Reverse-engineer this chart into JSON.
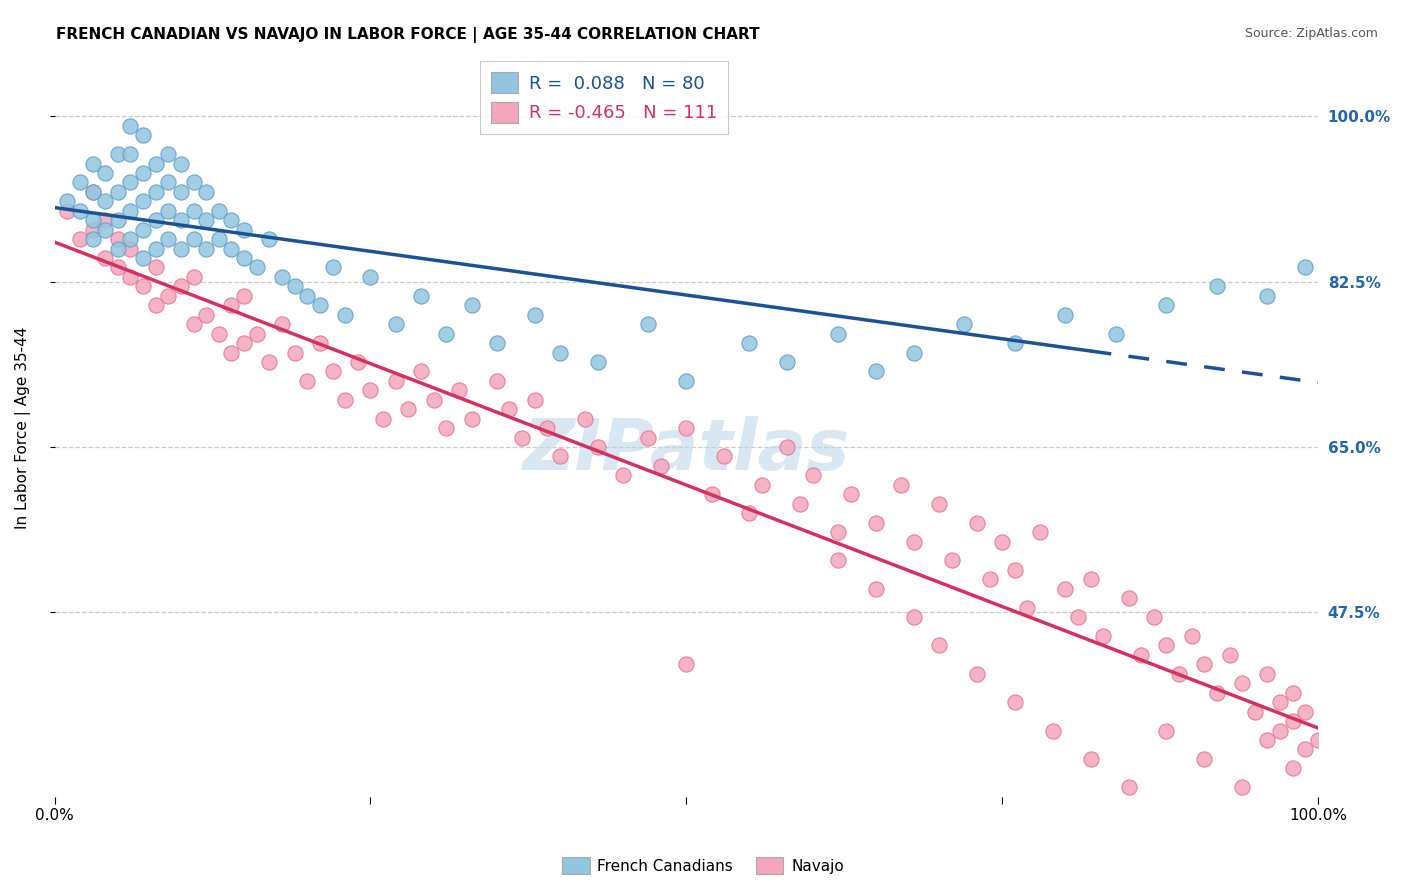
{
  "title": "FRENCH CANADIAN VS NAVAJO IN LABOR FORCE | AGE 35-44 CORRELATION CHART",
  "source": "Source: ZipAtlas.com",
  "ylabel": "In Labor Force | Age 35-44",
  "xlim": [
    0.0,
    1.0
  ],
  "ylim": [
    0.28,
    1.06
  ],
  "yticks": [
    0.475,
    0.65,
    0.825,
    1.0
  ],
  "ytick_labels": [
    "47.5%",
    "65.0%",
    "82.5%",
    "100.0%"
  ],
  "legend_blue_r": "0.088",
  "legend_blue_n": "80",
  "legend_pink_r": "-0.465",
  "legend_pink_n": "111",
  "blue_color": "#92c5de",
  "blue_edge_color": "#5a9fc8",
  "pink_color": "#f4a6bc",
  "pink_edge_color": "#e87097",
  "blue_line_color": "#1a5296",
  "pink_line_color": "#d63060",
  "watermark": "ZIPatlas",
  "background_color": "#ffffff",
  "grid_color": "#cccccc",
  "blue_scatter_x": [
    0.01,
    0.02,
    0.02,
    0.03,
    0.03,
    0.03,
    0.03,
    0.04,
    0.04,
    0.04,
    0.05,
    0.05,
    0.05,
    0.05,
    0.06,
    0.06,
    0.06,
    0.06,
    0.06,
    0.07,
    0.07,
    0.07,
    0.07,
    0.07,
    0.08,
    0.08,
    0.08,
    0.08,
    0.09,
    0.09,
    0.09,
    0.09,
    0.1,
    0.1,
    0.1,
    0.1,
    0.11,
    0.11,
    0.11,
    0.12,
    0.12,
    0.12,
    0.13,
    0.13,
    0.14,
    0.14,
    0.15,
    0.15,
    0.16,
    0.17,
    0.18,
    0.19,
    0.2,
    0.21,
    0.22,
    0.23,
    0.25,
    0.27,
    0.29,
    0.31,
    0.33,
    0.35,
    0.38,
    0.4,
    0.43,
    0.47,
    0.5,
    0.55,
    0.58,
    0.62,
    0.65,
    0.68,
    0.72,
    0.76,
    0.8,
    0.84,
    0.88,
    0.92,
    0.96,
    0.99
  ],
  "blue_scatter_y": [
    0.91,
    0.9,
    0.93,
    0.87,
    0.89,
    0.92,
    0.95,
    0.88,
    0.91,
    0.94,
    0.86,
    0.89,
    0.92,
    0.96,
    0.87,
    0.9,
    0.93,
    0.96,
    0.99,
    0.85,
    0.88,
    0.91,
    0.94,
    0.98,
    0.86,
    0.89,
    0.92,
    0.95,
    0.87,
    0.9,
    0.93,
    0.96,
    0.86,
    0.89,
    0.92,
    0.95,
    0.87,
    0.9,
    0.93,
    0.86,
    0.89,
    0.92,
    0.87,
    0.9,
    0.86,
    0.89,
    0.85,
    0.88,
    0.84,
    0.87,
    0.83,
    0.82,
    0.81,
    0.8,
    0.84,
    0.79,
    0.83,
    0.78,
    0.81,
    0.77,
    0.8,
    0.76,
    0.79,
    0.75,
    0.74,
    0.78,
    0.72,
    0.76,
    0.74,
    0.77,
    0.73,
    0.75,
    0.78,
    0.76,
    0.79,
    0.77,
    0.8,
    0.82,
    0.81,
    0.84
  ],
  "pink_scatter_x": [
    0.01,
    0.02,
    0.03,
    0.03,
    0.04,
    0.04,
    0.05,
    0.05,
    0.06,
    0.06,
    0.07,
    0.08,
    0.08,
    0.09,
    0.1,
    0.11,
    0.11,
    0.12,
    0.13,
    0.14,
    0.14,
    0.15,
    0.15,
    0.16,
    0.17,
    0.18,
    0.19,
    0.2,
    0.21,
    0.22,
    0.23,
    0.24,
    0.25,
    0.26,
    0.27,
    0.28,
    0.29,
    0.3,
    0.31,
    0.32,
    0.33,
    0.35,
    0.36,
    0.37,
    0.38,
    0.39,
    0.4,
    0.42,
    0.43,
    0.45,
    0.47,
    0.48,
    0.5,
    0.52,
    0.53,
    0.55,
    0.56,
    0.58,
    0.59,
    0.6,
    0.62,
    0.63,
    0.65,
    0.67,
    0.68,
    0.7,
    0.71,
    0.73,
    0.74,
    0.75,
    0.76,
    0.77,
    0.78,
    0.8,
    0.81,
    0.82,
    0.83,
    0.85,
    0.86,
    0.87,
    0.88,
    0.89,
    0.9,
    0.91,
    0.92,
    0.93,
    0.94,
    0.95,
    0.96,
    0.97,
    0.97,
    0.98,
    0.98,
    0.99,
    0.99,
    1.0,
    0.62,
    0.65,
    0.68,
    0.7,
    0.73,
    0.76,
    0.79,
    0.82,
    0.85,
    0.88,
    0.91,
    0.94,
    0.96,
    0.98,
    0.5
  ],
  "pink_scatter_y": [
    0.9,
    0.87,
    0.88,
    0.92,
    0.85,
    0.89,
    0.84,
    0.87,
    0.83,
    0.86,
    0.82,
    0.8,
    0.84,
    0.81,
    0.82,
    0.78,
    0.83,
    0.79,
    0.77,
    0.8,
    0.75,
    0.76,
    0.81,
    0.77,
    0.74,
    0.78,
    0.75,
    0.72,
    0.76,
    0.73,
    0.7,
    0.74,
    0.71,
    0.68,
    0.72,
    0.69,
    0.73,
    0.7,
    0.67,
    0.71,
    0.68,
    0.72,
    0.69,
    0.66,
    0.7,
    0.67,
    0.64,
    0.68,
    0.65,
    0.62,
    0.66,
    0.63,
    0.67,
    0.6,
    0.64,
    0.58,
    0.61,
    0.65,
    0.59,
    0.62,
    0.56,
    0.6,
    0.57,
    0.61,
    0.55,
    0.59,
    0.53,
    0.57,
    0.51,
    0.55,
    0.52,
    0.48,
    0.56,
    0.5,
    0.47,
    0.51,
    0.45,
    0.49,
    0.43,
    0.47,
    0.44,
    0.41,
    0.45,
    0.42,
    0.39,
    0.43,
    0.4,
    0.37,
    0.41,
    0.38,
    0.35,
    0.39,
    0.36,
    0.33,
    0.37,
    0.34,
    0.53,
    0.5,
    0.47,
    0.44,
    0.41,
    0.38,
    0.35,
    0.32,
    0.29,
    0.35,
    0.32,
    0.29,
    0.34,
    0.31,
    0.42
  ]
}
